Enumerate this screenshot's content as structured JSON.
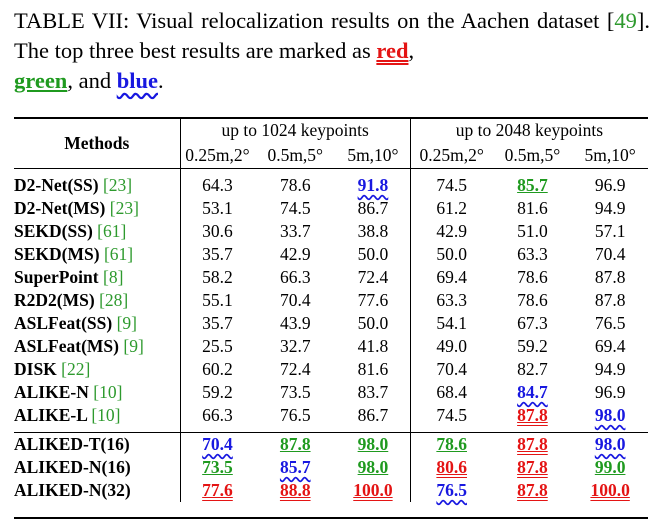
{
  "caption": {
    "prefix": "TABLE VII: Visual relocalization results on the Aachen dataset [",
    "cite": "49",
    "middle": "]. The top three best results are marked as ",
    "red": "red",
    "comma": ",",
    "green": "green",
    "and": ", and ",
    "blue": "blue",
    "end": "."
  },
  "table": {
    "methods_header": "Methods",
    "group1": "up to 1024 keypoints",
    "group2": "up to 2048 keypoints",
    "subheaders": [
      "0.25m,2°",
      "0.5m,5°",
      "5m,10°",
      "0.25m,2°",
      "0.5m,5°",
      "5m,10°"
    ],
    "rows": [
      {
        "name": "D2-Net(SS)",
        "ref": "23",
        "vals": [
          "64.3",
          "78.6",
          "91.8",
          "74.5",
          "85.7",
          "96.9"
        ],
        "marks": [
          "",
          "",
          "b",
          "",
          "g",
          ""
        ]
      },
      {
        "name": "D2-Net(MS)",
        "ref": "23",
        "vals": [
          "53.1",
          "74.5",
          "86.7",
          "61.2",
          "81.6",
          "94.9"
        ],
        "marks": [
          "",
          "",
          "",
          "",
          "",
          ""
        ]
      },
      {
        "name": "SEKD(SS)",
        "ref": "61",
        "vals": [
          "30.6",
          "33.7",
          "38.8",
          "42.9",
          "51.0",
          "57.1"
        ],
        "marks": [
          "",
          "",
          "",
          "",
          "",
          ""
        ]
      },
      {
        "name": "SEKD(MS)",
        "ref": "61",
        "vals": [
          "35.7",
          "42.9",
          "50.0",
          "50.0",
          "63.3",
          "70.4"
        ],
        "marks": [
          "",
          "",
          "",
          "",
          "",
          ""
        ]
      },
      {
        "name": "SuperPoint",
        "ref": "8",
        "vals": [
          "58.2",
          "66.3",
          "72.4",
          "69.4",
          "78.6",
          "87.8"
        ],
        "marks": [
          "",
          "",
          "",
          "",
          "",
          ""
        ]
      },
      {
        "name": "R2D2(MS)",
        "ref": "28",
        "vals": [
          "55.1",
          "70.4",
          "77.6",
          "63.3",
          "78.6",
          "87.8"
        ],
        "marks": [
          "",
          "",
          "",
          "",
          "",
          ""
        ]
      },
      {
        "name": "ASLFeat(SS)",
        "ref": "9",
        "vals": [
          "35.7",
          "43.9",
          "50.0",
          "54.1",
          "67.3",
          "76.5"
        ],
        "marks": [
          "",
          "",
          "",
          "",
          "",
          ""
        ]
      },
      {
        "name": "ASLFeat(MS)",
        "ref": "9",
        "vals": [
          "25.5",
          "32.7",
          "41.8",
          "49.0",
          "59.2",
          "69.4"
        ],
        "marks": [
          "",
          "",
          "",
          "",
          "",
          ""
        ]
      },
      {
        "name": "DISK",
        "ref": "22",
        "vals": [
          "60.2",
          "72.4",
          "81.6",
          "70.4",
          "82.7",
          "94.9"
        ],
        "marks": [
          "",
          "",
          "",
          "",
          "",
          ""
        ]
      },
      {
        "name": "ALIKE-N",
        "ref": "10",
        "vals": [
          "59.2",
          "73.5",
          "83.7",
          "68.4",
          "84.7",
          "96.9"
        ],
        "marks": [
          "",
          "",
          "",
          "",
          "b",
          ""
        ]
      },
      {
        "name": "ALIKE-L",
        "ref": "10",
        "vals": [
          "66.3",
          "76.5",
          "86.7",
          "74.5",
          "87.8",
          "98.0"
        ],
        "marks": [
          "",
          "",
          "",
          "",
          "r",
          "b"
        ]
      }
    ],
    "ours": [
      {
        "name": "ALIKED-T(16)",
        "vals": [
          "70.4",
          "87.8",
          "98.0",
          "78.6",
          "87.8",
          "98.0"
        ],
        "marks": [
          "b",
          "g",
          "g",
          "g",
          "r",
          "b"
        ]
      },
      {
        "name": "ALIKED-N(16)",
        "vals": [
          "73.5",
          "85.7",
          "98.0",
          "80.6",
          "87.8",
          "99.0"
        ],
        "marks": [
          "g",
          "b",
          "g",
          "r",
          "r",
          "g"
        ]
      },
      {
        "name": "ALIKED-N(32)",
        "vals": [
          "77.6",
          "88.8",
          "100.0",
          "76.5",
          "87.8",
          "100.0"
        ],
        "marks": [
          "r",
          "r",
          "r",
          "b",
          "r",
          "r"
        ]
      }
    ]
  },
  "colors": {
    "red": "#e41414",
    "green": "#1f9a1f",
    "blue": "#1818e0",
    "cite": "#2e9a2e"
  }
}
